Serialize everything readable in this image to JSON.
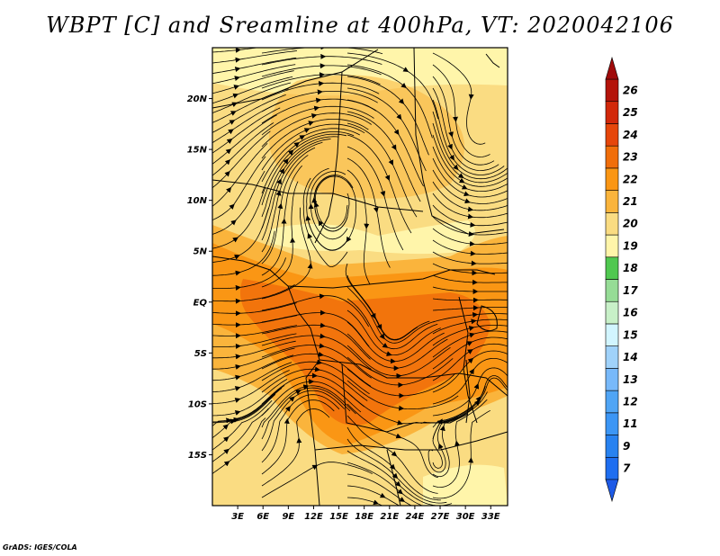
{
  "title": "WBPT [C] and Sreamline at 400hPa, VT: 2020042106",
  "footer": "GrADS: IGES/COLA",
  "map": {
    "lon_range": [
      0,
      35
    ],
    "lat_range": [
      -20,
      25
    ],
    "lat_ticks": [
      {
        "value": 20,
        "label": "20N"
      },
      {
        "value": 15,
        "label": "15N"
      },
      {
        "value": 10,
        "label": "10N"
      },
      {
        "value": 5,
        "label": "5N"
      },
      {
        "value": 0,
        "label": "EQ"
      },
      {
        "value": -5,
        "label": "5S"
      },
      {
        "value": -10,
        "label": "10S"
      },
      {
        "value": -15,
        "label": "15S"
      }
    ],
    "lon_ticks": [
      {
        "value": 3,
        "label": "3E"
      },
      {
        "value": 6,
        "label": "6E"
      },
      {
        "value": 9,
        "label": "9E"
      },
      {
        "value": 12,
        "label": "12E"
      },
      {
        "value": 15,
        "label": "15E"
      },
      {
        "value": 18,
        "label": "18E"
      },
      {
        "value": 21,
        "label": "21E"
      },
      {
        "value": 24,
        "label": "24E"
      },
      {
        "value": 27,
        "label": "27E"
      },
      {
        "value": 30,
        "label": "30E"
      },
      {
        "value": 33,
        "label": "33E"
      }
    ]
  },
  "colorbar": {
    "labels": [
      "7",
      "9",
      "11",
      "12",
      "13",
      "14",
      "15",
      "16",
      "17",
      "18",
      "19",
      "20",
      "21",
      "22",
      "23",
      "24",
      "25",
      "26"
    ],
    "colors": [
      "#1e6ef0",
      "#2882f0",
      "#3c96f5",
      "#50a5f5",
      "#78b9fa",
      "#a0d2fa",
      "#d2f5ff",
      "#c8f0c8",
      "#96dc96",
      "#50c850",
      "#fff5aa",
      "#fadc82",
      "#fab43c",
      "#fa9614",
      "#f06e0a",
      "#e6460a",
      "#d2280a",
      "#b4140a"
    ]
  }
}
